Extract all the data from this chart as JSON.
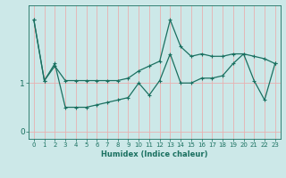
{
  "xlabel": "Humidex (Indice chaleur)",
  "background_color": "#cce8e8",
  "grid_color": "#e8b0b0",
  "line_color": "#1a7060",
  "xlim": [
    -0.5,
    23.5
  ],
  "ylim": [
    -0.15,
    2.6
  ],
  "yticks": [
    0,
    1
  ],
  "xticks": [
    0,
    1,
    2,
    3,
    4,
    5,
    6,
    7,
    8,
    9,
    10,
    11,
    12,
    13,
    14,
    15,
    16,
    17,
    18,
    19,
    20,
    21,
    22,
    23
  ],
  "line1_x": [
    0,
    1,
    2,
    3,
    4,
    5,
    6,
    7,
    8,
    9,
    10,
    11,
    12,
    13,
    14,
    15,
    16,
    17,
    18,
    19,
    20,
    21,
    22,
    23
  ],
  "line1_y": [
    2.3,
    1.05,
    1.35,
    1.05,
    1.05,
    1.05,
    1.05,
    1.05,
    1.05,
    1.1,
    1.25,
    1.35,
    1.45,
    2.3,
    1.75,
    1.55,
    1.6,
    1.55,
    1.55,
    1.6,
    1.6,
    1.55,
    1.5,
    1.4
  ],
  "line2_x": [
    0,
    1,
    2,
    3,
    4,
    5,
    6,
    7,
    8,
    9,
    10,
    11,
    12,
    13,
    14,
    15,
    16,
    17,
    18,
    19,
    20,
    21,
    22,
    23
  ],
  "line2_y": [
    2.3,
    1.05,
    1.4,
    0.5,
    0.5,
    0.5,
    0.55,
    0.6,
    0.65,
    0.7,
    1.0,
    0.75,
    1.05,
    1.6,
    1.0,
    1.0,
    1.1,
    1.1,
    1.15,
    1.4,
    1.6,
    1.05,
    0.65,
    1.4
  ],
  "xlabel_fontsize": 6.0,
  "xlabel_fontweight": "bold",
  "xtick_fontsize": 5.0,
  "ytick_fontsize": 6.5,
  "marker": "+",
  "markersize": 3.0,
  "linewidth": 0.9
}
